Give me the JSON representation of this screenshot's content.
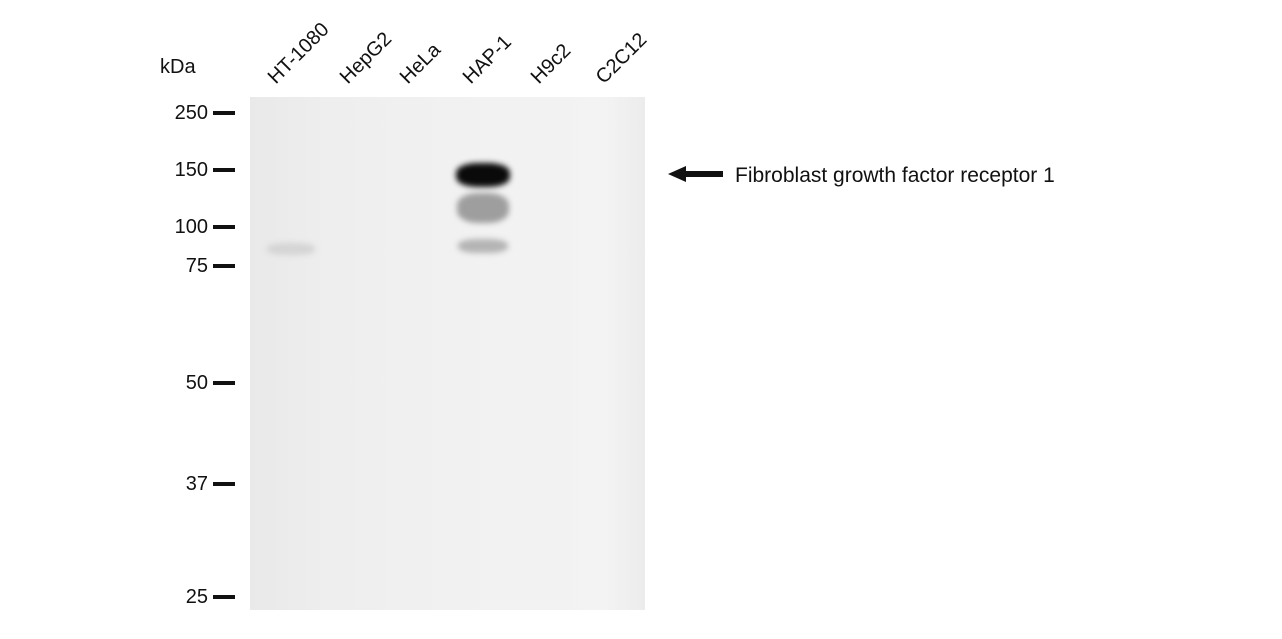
{
  "unit_label": "kDa",
  "markers": [
    "250",
    "150",
    "100",
    "75",
    "50",
    "37",
    "25"
  ],
  "lanes": [
    "HT-1080",
    "HepG2",
    "HeLa",
    "HAP-1",
    "H9c2",
    "C2C12"
  ],
  "target_label": "Fibroblast growth factor receptor 1"
}
